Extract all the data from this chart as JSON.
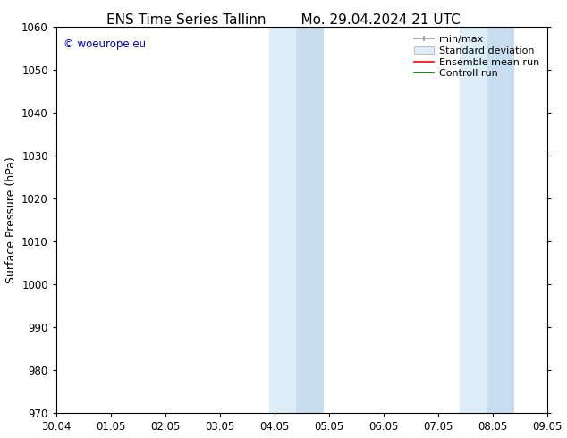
{
  "title_left": "ENS Time Series Tallinn",
  "title_right": "Mo. 29.04.2024 21 UTC",
  "ylabel": "Surface Pressure (hPa)",
  "ylim": [
    970,
    1060
  ],
  "yticks": [
    970,
    980,
    990,
    1000,
    1010,
    1020,
    1030,
    1040,
    1050,
    1060
  ],
  "xtick_labels": [
    "30.04",
    "01.05",
    "02.05",
    "03.05",
    "04.05",
    "05.05",
    "06.05",
    "07.05",
    "08.05",
    "09.05"
  ],
  "xtick_positions": [
    0,
    1,
    2,
    3,
    4,
    5,
    6,
    7,
    8,
    9
  ],
  "xlim": [
    0,
    9
  ],
  "shaded_regions": [
    {
      "x_start": 3.875,
      "x_end": 4.375,
      "color": "#ddeeff"
    },
    {
      "x_start": 4.375,
      "x_end": 4.875,
      "color": "#ccddf0"
    },
    {
      "x_start": 7.375,
      "x_end": 7.875,
      "color": "#ddeeff"
    },
    {
      "x_start": 7.875,
      "x_end": 8.375,
      "color": "#ccddf0"
    }
  ],
  "watermark_text": "© woeurope.eu",
  "watermark_color": "#0000cc",
  "background_color": "#ffffff",
  "plot_bg_color": "#ffffff",
  "border_color": "#000000",
  "title_fontsize": 11,
  "axis_fontsize": 9,
  "tick_fontsize": 8.5,
  "legend_fontsize": 8
}
